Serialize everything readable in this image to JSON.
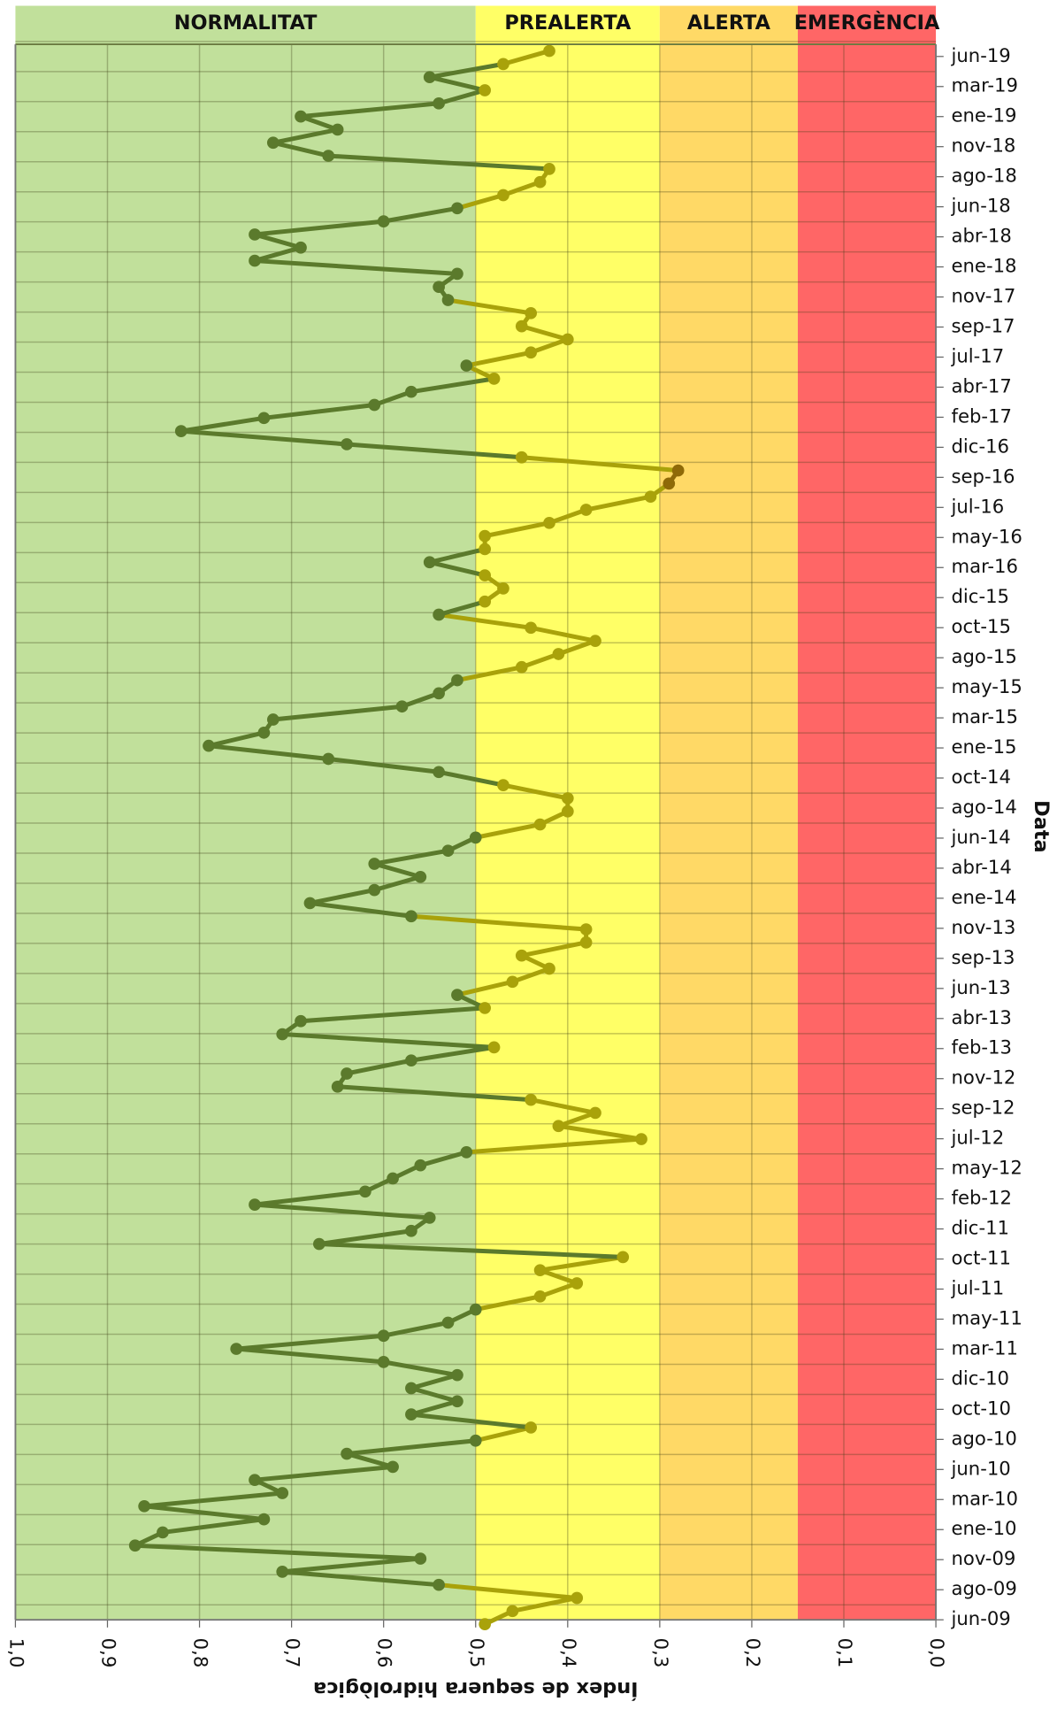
{
  "chart_data": {
    "type": "line",
    "x_title": "Índex de sequera hidrològica",
    "y_title": "Data",
    "xlim": [
      1.0,
      0.0
    ],
    "xticks": [
      {
        "value": 1.0,
        "label": "1,0"
      },
      {
        "value": 0.9,
        "label": "0,9"
      },
      {
        "value": 0.8,
        "label": "0,8"
      },
      {
        "value": 0.7,
        "label": "0,7"
      },
      {
        "value": 0.6,
        "label": "0,6"
      },
      {
        "value": 0.5,
        "label": "0,5"
      },
      {
        "value": 0.4,
        "label": "0,4"
      },
      {
        "value": 0.3,
        "label": "0,3"
      },
      {
        "value": 0.2,
        "label": "0,2"
      },
      {
        "value": 0.1,
        "label": "0,1"
      },
      {
        "value": 0.0,
        "label": "0,0"
      }
    ],
    "yticks": [
      "jun-09",
      "ago-09",
      "nov-09",
      "ene-10",
      "mar-10",
      "jun-10",
      "ago-10",
      "oct-10",
      "dic-10",
      "mar-11",
      "may-11",
      "jul-11",
      "oct-11",
      "dic-11",
      "feb-12",
      "may-12",
      "jul-12",
      "sep-12",
      "nov-12",
      "feb-13",
      "abr-13",
      "jun-13",
      "sep-13",
      "nov-13",
      "ene-14",
      "abr-14",
      "jun-14",
      "ago-14",
      "oct-14",
      "ene-15",
      "mar-15",
      "may-15",
      "ago-15",
      "oct-15",
      "dic-15",
      "mar-16",
      "may-16",
      "jul-16",
      "sep-16",
      "dic-16",
      "feb-17",
      "abr-17",
      "jul-17",
      "sep-17",
      "nov-17",
      "ene-18",
      "abr-18",
      "jun-18",
      "ago-18",
      "nov-18",
      "ene-19",
      "mar-19",
      "jun-19"
    ],
    "grid": true,
    "zones": [
      {
        "name": "NORMALITAT",
        "from": 1.0,
        "to": 0.5,
        "color": "#c1e09b",
        "line_color": "#5b7a2c"
      },
      {
        "name": "PREALERTA",
        "from": 0.5,
        "to": 0.3,
        "color": "#ffff66",
        "line_color": "#a9a20a"
      },
      {
        "name": "ALERTA",
        "from": 0.3,
        "to": 0.15,
        "color": "#ffd966",
        "line_color": "#8f6a08"
      },
      {
        "name": "EMERGÈNCIA",
        "from": 0.15,
        "to": 0.0,
        "color": "#ff6666",
        "line_color": "#8f2020"
      }
    ],
    "values": [
      0.49,
      0.46,
      0.39,
      0.54,
      0.71,
      0.56,
      0.87,
      0.84,
      0.73,
      0.86,
      0.71,
      0.74,
      0.59,
      0.64,
      0.5,
      0.44,
      0.57,
      0.52,
      0.57,
      0.52,
      0.6,
      0.76,
      0.6,
      0.53,
      0.5,
      0.43,
      0.39,
      0.43,
      0.34,
      0.67,
      0.57,
      0.55,
      0.74,
      0.62,
      0.59,
      0.56,
      0.51,
      0.32,
      0.41,
      0.37,
      0.44,
      0.65,
      0.64,
      0.57,
      0.48,
      0.71,
      0.69,
      0.49,
      0.52,
      0.46,
      0.42,
      0.45,
      0.38,
      0.38,
      0.57,
      0.68,
      0.61,
      0.56,
      0.61,
      0.53,
      0.5,
      0.43,
      0.4,
      0.4,
      0.47,
      0.54,
      0.66,
      0.79,
      0.73,
      0.72,
      0.58,
      0.54,
      0.52,
      0.45,
      0.41,
      0.37,
      0.44,
      0.54,
      0.49,
      0.47,
      0.49,
      0.55,
      0.49,
      0.49,
      0.42,
      0.38,
      0.31,
      0.29,
      0.28,
      0.45,
      0.64,
      0.82,
      0.73,
      0.61,
      0.57,
      0.48,
      0.51,
      0.44,
      0.4,
      0.45,
      0.44,
      0.53,
      0.54,
      0.52,
      0.74,
      0.69,
      0.74,
      0.6,
      0.52,
      0.47,
      0.43,
      0.42,
      0.66,
      0.72,
      0.65,
      0.69,
      0.54,
      0.49,
      0.55,
      0.47,
      0.42
    ]
  }
}
